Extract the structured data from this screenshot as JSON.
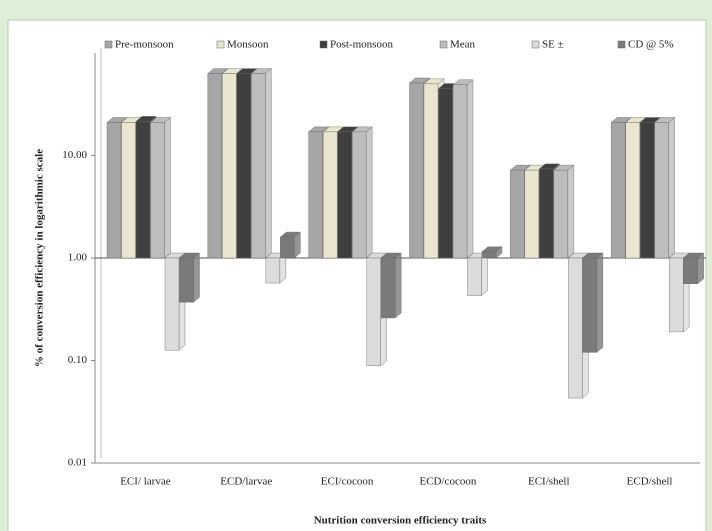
{
  "chart_data": {
    "type": "bar",
    "log_scale": true,
    "baseline": 1,
    "xlabel": "Nutrition conversion efficiency traits",
    "ylabel": "% of conversion efficiency in logarithmic scale",
    "categories": [
      "ECI/ larvae",
      "ECD/larvae",
      "ECI/cocoon",
      "ECD/cocoon",
      "ECI/shell",
      "ECD/shell"
    ],
    "series": [
      {
        "name": "Pre-monsoon",
        "color": "#a6a6a6",
        "values": [
          21,
          63,
          17,
          51,
          7.2,
          21
        ]
      },
      {
        "name": "Monsoon",
        "color": "#e9e5cf",
        "values": [
          21,
          63,
          17,
          50,
          7.2,
          21
        ]
      },
      {
        "name": "Post-monsoon",
        "color": "#3f3f3f",
        "values": [
          21.5,
          63,
          17,
          45,
          7.4,
          21
        ]
      },
      {
        "name": "Mean",
        "color": "#bdbdbd",
        "values": [
          21,
          63,
          17,
          49,
          7.2,
          21
        ]
      },
      {
        "name": "SE ±",
        "color": "#dcdcdc",
        "values": [
          0.126,
          0.57,
          0.089,
          0.43,
          0.043,
          0.19
        ]
      },
      {
        "name": "CD @ 5%",
        "color": "#7a7a7a",
        "values": [
          0.37,
          1.6,
          0.26,
          1.15,
          0.12,
          0.56
        ]
      }
    ],
    "ylim": [
      0.01,
      100
    ],
    "yticks": [
      0.01,
      {
        "value": 0.1,
        "label": "0.10"
      },
      {
        "value": 1,
        "label": "1.00"
      },
      {
        "value": 10,
        "label": "10.00"
      }
    ]
  }
}
